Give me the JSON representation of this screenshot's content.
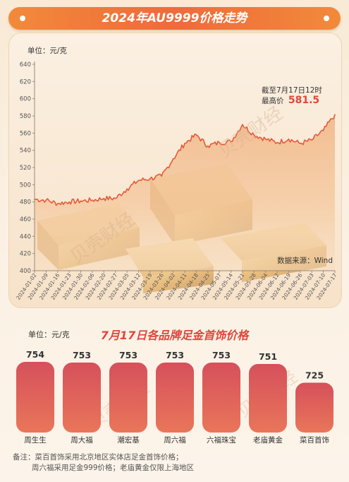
{
  "title": "2024年AU9999价格走势",
  "top_chart": {
    "unit_label": "单位：元/克",
    "annotation_line1": "截至7月17日12时",
    "annotation_prefix": "最高价",
    "annotation_value": "581.5",
    "source": "数据来源：Wind",
    "watermark": "贝壳财经",
    "colors": {
      "line": "#e25b3a",
      "area_top": "#f2b98f",
      "annotation": "#e0463c"
    }
  },
  "chart_data": [
    {
      "type": "line",
      "title": "2024年AU9999价格走势",
      "ylabel": "单位：元/克",
      "ylim": [
        400,
        640
      ],
      "yticks": [
        400,
        420,
        440,
        460,
        480,
        500,
        520,
        540,
        560,
        580,
        600,
        620,
        640
      ],
      "categories": [
        "2024-01-02",
        "2024-01-09",
        "2024-01-16",
        "2024-01-23",
        "2024-01-30",
        "2024-02-06",
        "2024-02-20",
        "2024-02-27",
        "2024-03-05",
        "2024-03-12",
        "2024-03-19",
        "2024-03-26",
        "2024-04-02",
        "2024-04-11",
        "2024-04-18",
        "2024-04-25",
        "2024-05-07",
        "2024-05-14",
        "2024-05-21",
        "2024-05-28",
        "2024-06-04",
        "2024-06-12",
        "2024-06-19",
        "2024-06-26",
        "2024-07-03",
        "2024-07-10",
        "2024-07-17"
      ],
      "values": [
        483,
        482,
        478,
        480,
        481,
        482,
        484,
        484,
        495,
        505,
        507,
        510,
        530,
        548,
        558,
        545,
        549,
        550,
        570,
        558,
        553,
        549,
        553,
        548,
        552,
        563,
        581.5
      ],
      "grid": false
    },
    {
      "type": "bar",
      "title": "7月17日各品牌足金首饰价格",
      "ylabel": "单位：元/克",
      "categories": [
        "周生生",
        "周大福",
        "潮宏基",
        "周六福",
        "六福珠宝",
        "老庙黄金",
        "菜百首饰"
      ],
      "values": [
        754,
        753,
        753,
        753,
        753,
        751,
        725
      ],
      "ylim": [
        0,
        754
      ],
      "colors": {
        "bar_top": "#d8505a",
        "bar_bottom": "#e8725a"
      }
    }
  ],
  "bottom_chart": {
    "unit_label": "单位：元/克",
    "title": "7月17日各品牌足金首饰价格"
  },
  "note": {
    "line1": "备注：菜百首饰采用北京地区实体店足金首饰价格；",
    "line2": "周六福采用足金999价格；老庙黄金仅限上海地区"
  }
}
